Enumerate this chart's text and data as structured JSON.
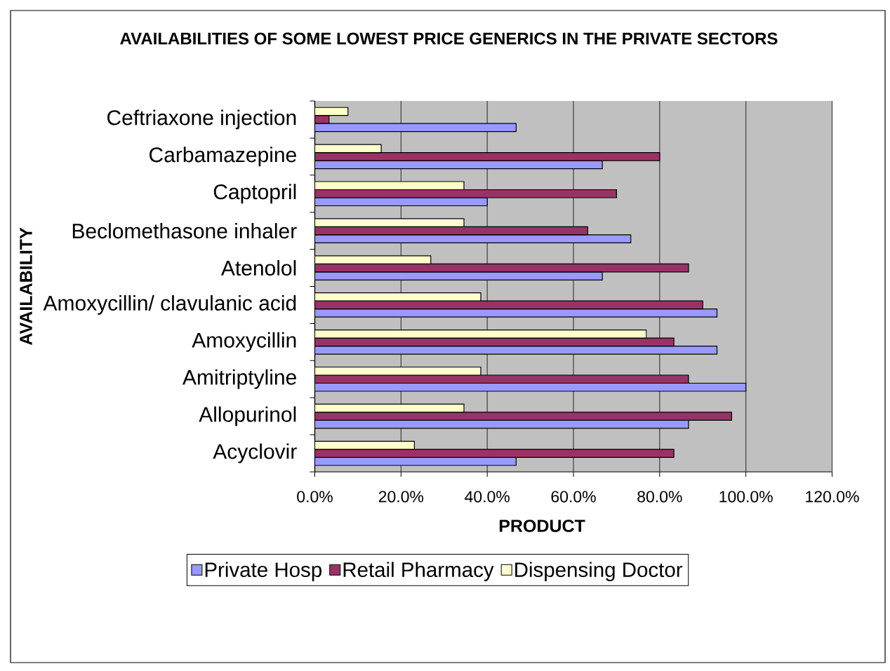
{
  "chart_data": {
    "type": "bar",
    "orientation": "horizontal",
    "title": "AVAILABILITIES OF SOME LOWEST PRICE GENERICS  IN THE PRIVATE SECTORS",
    "xlabel": "PRODUCT",
    "ylabel": "AVAILABILITY",
    "categories": [
      "Ceftriaxone injection",
      "Carbamazepine",
      "Captopril",
      "Beclomethasone inhaler",
      "Atenolol",
      "Amoxycillin/ clavulanic acid",
      "Amoxycillin",
      "Amitriptyline",
      "Allopurinol",
      "Acyclovir"
    ],
    "series": [
      {
        "name": "Private Hosp",
        "color": "#9999ff",
        "values": [
          46.7,
          66.7,
          40,
          73.3,
          66.7,
          93.3,
          93.3,
          100,
          86.7,
          46.7
        ]
      },
      {
        "name": "Retail Pharmacy",
        "color": "#993366",
        "values": [
          3.3,
          80,
          70,
          63.3,
          86.7,
          90,
          83.3,
          86.7,
          96.7,
          83.3
        ]
      },
      {
        "name": "Dispensing Doctor",
        "color": "#ffffcc",
        "values": [
          7.7,
          15.4,
          34.6,
          34.6,
          26.9,
          38.5,
          76.9,
          38.5,
          34.6,
          23.1
        ]
      }
    ],
    "xlim": [
      0,
      120
    ],
    "xticks": [
      {
        "value": 0,
        "label": "0.0%"
      },
      {
        "value": 20,
        "label": "20.0%"
      },
      {
        "value": 40,
        "label": "40.0%"
      },
      {
        "value": 60,
        "label": "60.0%"
      },
      {
        "value": 80,
        "label": "80.0%"
      },
      {
        "value": 100,
        "label": "100.0%"
      },
      {
        "value": 120,
        "label": "120.0%"
      }
    ],
    "grid": "x",
    "legend": "bottom"
  }
}
